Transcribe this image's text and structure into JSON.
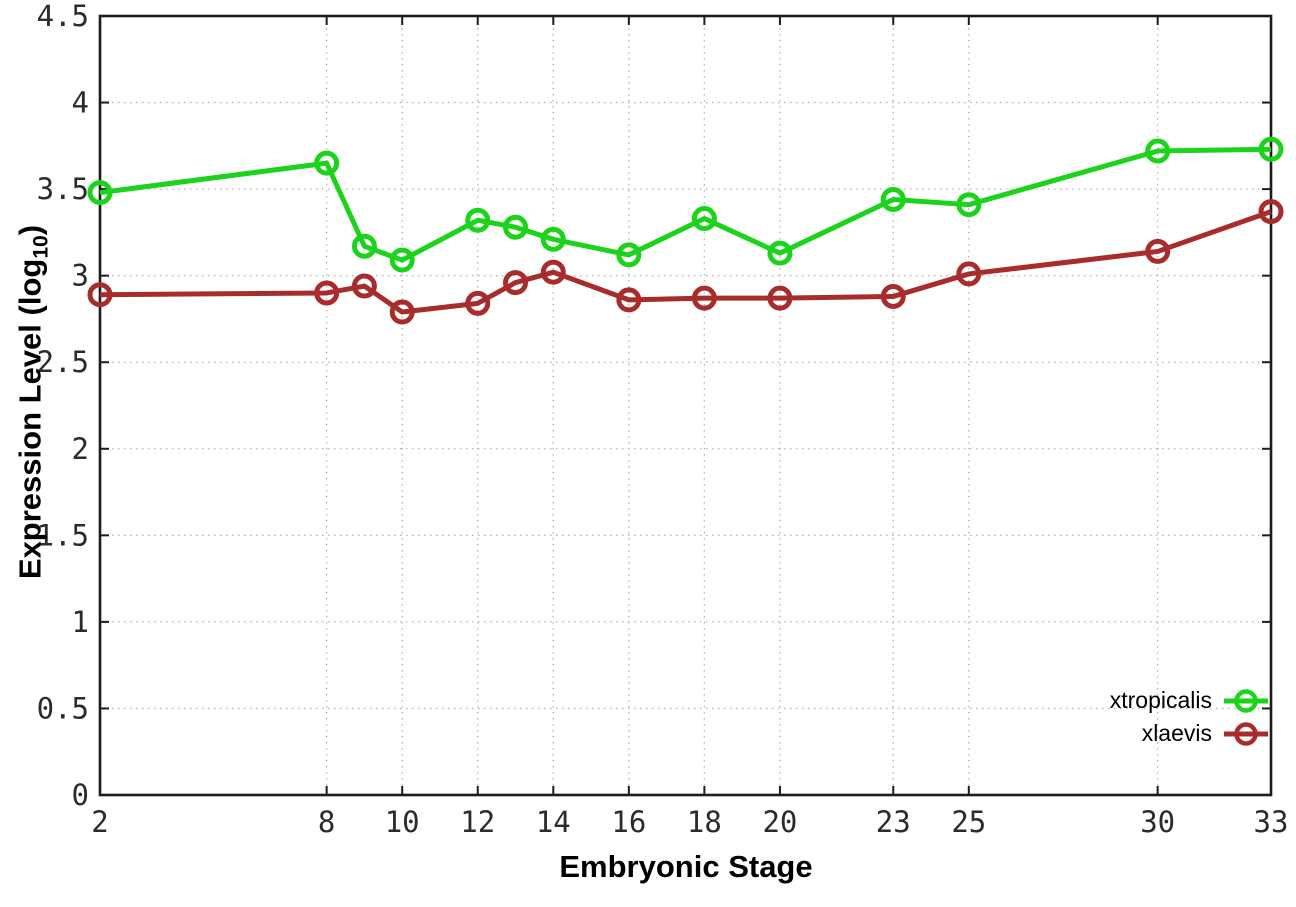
{
  "figure": {
    "background": "#ffffff",
    "axis_color": "#1c1c1c",
    "grid_color": "#b4b4b4",
    "tick_label_color": "#2b2b2b"
  },
  "chart_data": {
    "type": "line",
    "title": "",
    "xlabel": "Embryonic Stage",
    "ylabel": {
      "prefix": "Expression Level (log",
      "sub": "10",
      "suffix": ")"
    },
    "xlim": [
      2,
      33
    ],
    "ylim": [
      0,
      4.5
    ],
    "grid": "dotted",
    "legend_position": "inside-bottom-right",
    "x_ticks": [
      2,
      8,
      10,
      12,
      14,
      16,
      18,
      20,
      23,
      25,
      30,
      33
    ],
    "x_tick_labels": [
      "2",
      "8",
      "10",
      "12",
      "14",
      "16",
      "18",
      "20",
      "23",
      "25",
      "30",
      "33"
    ],
    "y_ticks": [
      0,
      0.5,
      1,
      1.5,
      2,
      2.5,
      3,
      3.5,
      4,
      4.5
    ],
    "y_tick_labels": [
      "0",
      "0.5",
      "1",
      "1.5",
      "2",
      "2.5",
      "3",
      "3.5",
      "4",
      "4.5"
    ],
    "x": [
      2,
      8,
      9,
      10,
      12,
      13,
      14,
      16,
      18,
      20,
      23,
      25,
      30,
      33
    ],
    "series": [
      {
        "name": "xtropicalis",
        "color": "#1bd31b",
        "values": [
          3.48,
          3.65,
          3.17,
          3.09,
          3.32,
          3.28,
          3.21,
          3.12,
          3.33,
          3.13,
          3.44,
          3.41,
          3.72,
          3.73
        ]
      },
      {
        "name": "xlaevis",
        "color": "#a82c2c",
        "values": [
          2.89,
          2.9,
          2.94,
          2.79,
          2.84,
          2.96,
          3.02,
          2.86,
          2.87,
          2.87,
          2.88,
          3.01,
          3.14,
          3.37
        ]
      }
    ]
  }
}
